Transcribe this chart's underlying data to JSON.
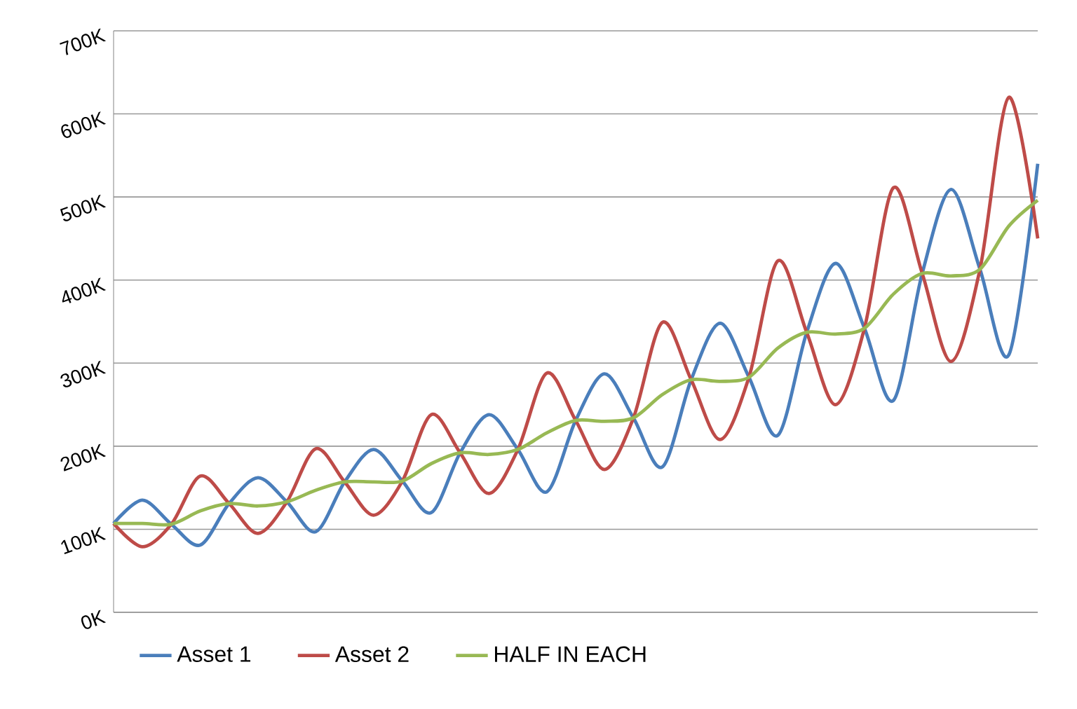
{
  "chart_data": {
    "type": "line",
    "categories": [
      null,
      null,
      null,
      null,
      null,
      null,
      null,
      null,
      null,
      null,
      null,
      null,
      null,
      null,
      null,
      null,
      null,
      null,
      null,
      null,
      null,
      null,
      null,
      null,
      null,
      null,
      null,
      null,
      null,
      null,
      null,
      null,
      null
    ],
    "series": [
      {
        "name": "Asset 1",
        "color": "#4a7ebb",
        "values": [
          107,
          135,
          106,
          81,
          131,
          162,
          133,
          97,
          157,
          196,
          158,
          120,
          192,
          238,
          196,
          145,
          231,
          287,
          234,
          175,
          280,
          348,
          283,
          213,
          337,
          420,
          342,
          255,
          408,
          509,
          413,
          310,
          540
        ]
      },
      {
        "name": "Asset 2",
        "color": "#be4b48",
        "values": [
          107,
          79,
          106,
          164,
          131,
          95,
          133,
          197,
          157,
          117,
          158,
          238,
          192,
          143,
          196,
          288,
          231,
          172,
          234,
          349,
          280,
          208,
          283,
          423,
          337,
          250,
          342,
          511,
          408,
          302,
          413,
          620,
          450
        ]
      },
      {
        "name": "HALF IN EACH",
        "color": "#98b954",
        "values": [
          107,
          107,
          106,
          122,
          131,
          128,
          133,
          147,
          157,
          157,
          158,
          179,
          192,
          190,
          196,
          216,
          231,
          230,
          234,
          262,
          280,
          278,
          283,
          318,
          337,
          335,
          342,
          383,
          408,
          405,
          413,
          465,
          496
        ]
      }
    ],
    "ylim": [
      0,
      700
    ],
    "yticks": [
      {
        "value": 0,
        "label": "0K"
      },
      {
        "value": 100,
        "label": "100K"
      },
      {
        "value": 200,
        "label": "200K"
      },
      {
        "value": 300,
        "label": "300K"
      },
      {
        "value": 400,
        "label": "400K"
      },
      {
        "value": 500,
        "label": "500K"
      },
      {
        "value": 600,
        "label": "600K"
      },
      {
        "value": 700,
        "label": "700K"
      }
    ],
    "grid": "y",
    "legend": "bottom",
    "tick_labels": "y"
  }
}
